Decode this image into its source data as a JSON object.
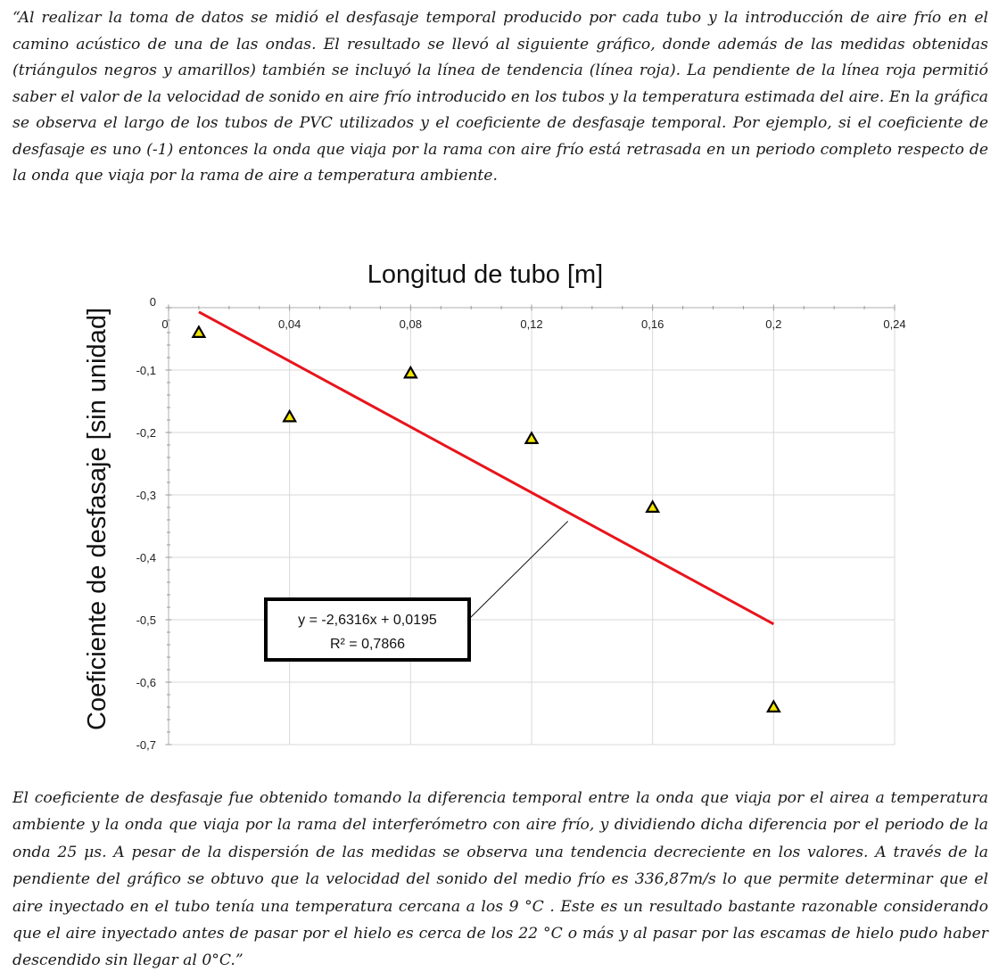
{
  "document": {
    "intro_paragraph": "“Al realizar la toma de datos se midió el desfasaje temporal producido por cada tubo y la introducción de aire frío en el camino acústico de una de las ondas. El resultado se llevó al siguiente gráfico, donde además de las medidas obtenidas (triángulos negros y amarillos) también se incluyó la línea de tendencia (línea roja). La pendiente de la línea roja permitió saber el valor de la velocidad de sonido en aire frío introducido en los tubos y la temperatura estimada del aire. En la gráfica se observa el largo de los tubos de PVC utilizados y el coeficiente de desfasaje temporal. Por ejemplo, si el coeficiente de desfasaje es uno (-1) entonces la onda que viaja por la rama con aire frío está retrasada en un periodo completo respecto de la onda que viaja por la rama de aire a temperatura ambiente.",
    "closing_paragraph": "El coeficiente de desfasaje fue obtenido tomando la diferencia temporal entre la onda que viaja por el airea a temperatura ambiente y la onda que viaja por la rama del interferómetro con aire frío, y dividiendo dicha diferencia por el periodo de la onda 25 μs. A pesar de la dispersión de las medidas se observa una tendencia decreciente en los valores. A través de la pendiente del gráfico se obtuvo que la velocidad del sonido del medio frío es 336,87m/s lo que permite determinar que el aire inyectado en el tubo tenía una temperatura cercana a los 9 °C . Este es un resultado bastante razonable considerando que el aire inyectado antes de pasar por el hielo es cerca de los 22 °C o más y al pasar por las escamas de hielo pudo haber descendido sin llegar al 0°C.”"
  },
  "chart_data": {
    "type": "scatter",
    "title": "Longitud de tubo [m]",
    "xlabel": "Longitud de tubo [m]",
    "ylabel": "Coeficiente de desfasaje [sin unidad]",
    "xlim": [
      0,
      0.24
    ],
    "ylim": [
      -0.7,
      0
    ],
    "x_axis_position": "top",
    "grid": true,
    "x_ticks": [
      0,
      0.04,
      0.08,
      0.12,
      0.16,
      0.2,
      0.24
    ],
    "x_tick_labels": [
      "0",
      "0,04",
      "0,08",
      "0,12",
      "0,16",
      "0,2",
      "0,24"
    ],
    "y_ticks": [
      0,
      -0.1,
      -0.2,
      -0.3,
      -0.4,
      -0.5,
      -0.6,
      -0.7
    ],
    "y_tick_labels": [
      "0",
      "-0,1",
      "-0,2",
      "-0,3",
      "-0,4",
      "-0,5",
      "-0,6",
      "-0,7"
    ],
    "points": [
      {
        "x": 0.01,
        "y": -0.04
      },
      {
        "x": 0.04,
        "y": -0.175
      },
      {
        "x": 0.08,
        "y": -0.105
      },
      {
        "x": 0.12,
        "y": -0.21
      },
      {
        "x": 0.16,
        "y": -0.32
      },
      {
        "x": 0.2,
        "y": -0.64
      }
    ],
    "marker": {
      "shape": "triangle",
      "fill": "#f2e600",
      "stroke": "#000000"
    },
    "trendline": {
      "slope": -2.6316,
      "intercept": 0.0195,
      "x_range": [
        0.01,
        0.2
      ],
      "color": "#e8141c",
      "equation": "y = -2,6316x + 0,0195",
      "r_squared": "R² = 0,7866"
    }
  }
}
